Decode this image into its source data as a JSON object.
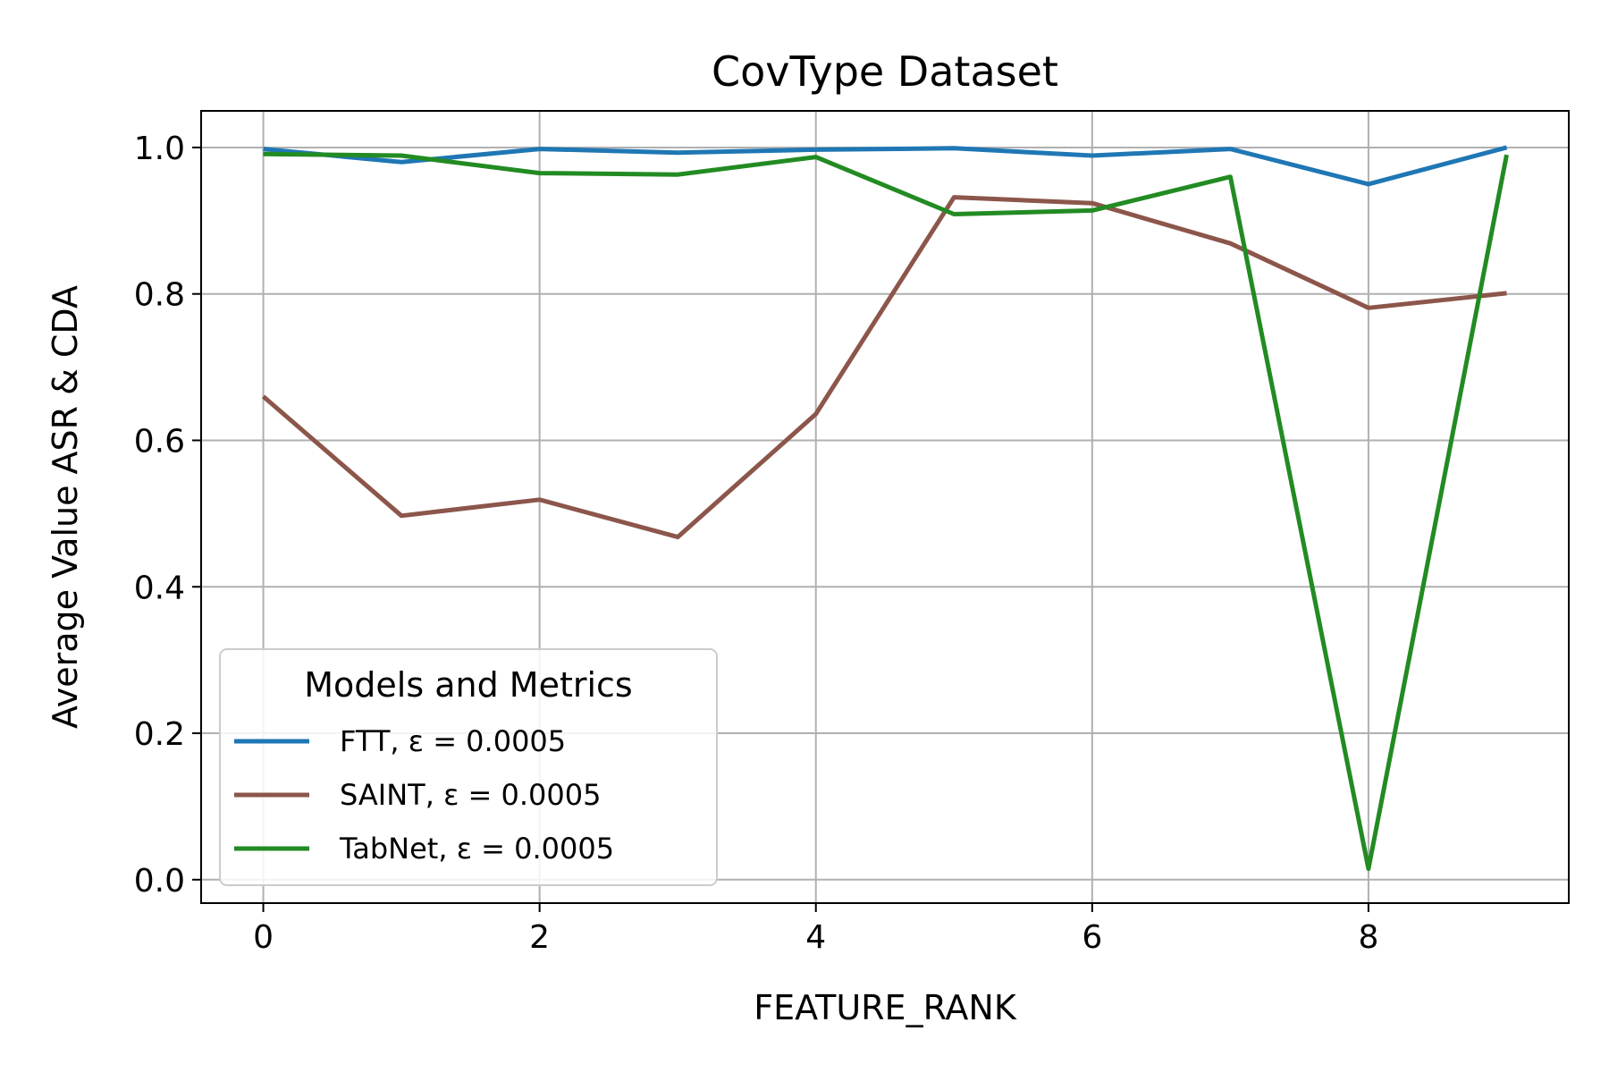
{
  "chart_data": {
    "type": "line",
    "title": "CovType Dataset",
    "xlabel": "FEATURE_RANK",
    "ylabel": "Average Value ASR & CDA",
    "x": [
      0,
      1,
      2,
      3,
      4,
      5,
      6,
      7,
      8,
      9
    ],
    "xlim": [
      -0.45,
      9.45
    ],
    "ylim": [
      -0.032,
      1.05
    ],
    "xticks": [
      0,
      2,
      4,
      6,
      8
    ],
    "yticks": [
      0.0,
      0.2,
      0.4,
      0.6,
      0.8,
      1.0
    ],
    "xtick_labels": [
      "0",
      "2",
      "4",
      "6",
      "8"
    ],
    "ytick_labels": [
      "0.0",
      "0.2",
      "0.4",
      "0.6",
      "0.8",
      "1.0"
    ],
    "grid": true,
    "legend": {
      "title": "Models and Metrics",
      "location": "lower-left"
    },
    "series": [
      {
        "name": "FTT, ε = 0.0005",
        "color": "#1f77b4",
        "values": [
          0.998,
          0.98,
          0.998,
          0.993,
          0.997,
          0.999,
          0.989,
          0.998,
          0.95,
          1.0
        ]
      },
      {
        "name": "SAINT, ε = 0.0005",
        "color": "#8c564b",
        "values": [
          0.66,
          0.497,
          0.519,
          0.468,
          0.636,
          0.932,
          0.924,
          0.869,
          0.781,
          0.801
        ]
      },
      {
        "name": "TabNet, ε = 0.0005",
        "color": "#228b22",
        "values": [
          0.991,
          0.989,
          0.965,
          0.963,
          0.987,
          0.909,
          0.914,
          0.96,
          0.015,
          0.99
        ]
      }
    ]
  }
}
